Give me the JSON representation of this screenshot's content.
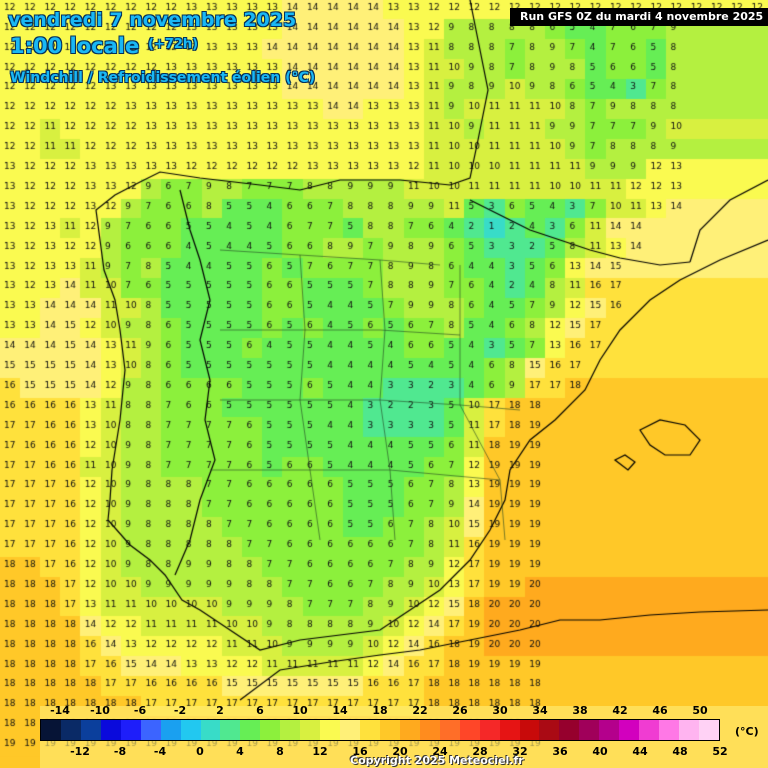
{
  "header": {
    "date": "vendredi 7 novembre 2025",
    "local_time": "1:00 locale",
    "offset": "(+72h)",
    "parameter": "Windchill / Refroidissement éolien (°C)",
    "run": "Run GFS 0Z du mardi 4 novembre 2025"
  },
  "legend": {
    "unit": "(°C)",
    "upper_ticks": [
      "-14",
      "-10",
      "-6",
      "-2",
      "2",
      "6",
      "10",
      "14",
      "18",
      "22",
      "26",
      "30",
      "34",
      "38",
      "42",
      "46",
      "50"
    ],
    "lower_ticks": [
      "-12",
      "-8",
      "-4",
      "0",
      "4",
      "8",
      "12",
      "16",
      "20",
      "24",
      "28",
      "32",
      "36",
      "40",
      "44",
      "48",
      "52"
    ],
    "colors": [
      "#061436",
      "#0a2a66",
      "#0b3f9c",
      "#0a0adc",
      "#1e1efa",
      "#3c64ff",
      "#1aa0f0",
      "#22c8f0",
      "#38dcc8",
      "#50e890",
      "#66ee55",
      "#8cf03c",
      "#b4f040",
      "#d8f040",
      "#fafa50",
      "#fff078",
      "#ffe13c",
      "#ffc828",
      "#ffaa1e",
      "#ff8c1e",
      "#ff6e28",
      "#ff4628",
      "#f52828",
      "#e61414",
      "#c80a0a",
      "#aa0a14",
      "#96002d",
      "#a0005a",
      "#b4008c",
      "#d200be",
      "#f03cd2",
      "#ff78e6",
      "#ffb4f0",
      "#ffd2f5"
    ]
  },
  "copyright": "Copyright 2025 Meteociel.fr",
  "map": {
    "temperature_grid": [
      "12 12 12 12 12 12 12 12 12 13 13 13 13 13 14 14 14 14 14 13 13 12 12 12 12 12 12 12 12 12 12 12 12 12 12 12 12 12",
      "12 12 12 12 12 12 12 12 12 13 13 13 13 13 14 14 14 14 14 14 13 12 9 8 8 8 8 6 5 4 7 6 7 9",
      "12 12 12 12 12 12 12 12 12 13 13 13 13 14 14 14 14 14 14 14 13 11 8 8 8 7 8 9 7 4 7 6 5 8",
      "12 12 12 12 12 12 12 12 13 13 13 13 13 13 14 14 14 14 14 14 13 11 10 9 8 7 8 9 8 5 6 6 5 8",
      "12 12 12 12 12 13 13 13 13 13 13 13 13 13 14 14 14 14 14 14 13 11 9 8 9 10 9 8 6 5 4 3 7 8",
      "12 12 12 12 12 12 13 13 13 13 13 13 13 13 13 13 14 14 13 13 13 11 9 10 11 11 11 10 8 7 9 8 8 8",
      "12 12 11 12 12 12 12 13 13 13 13 13 13 13 13 13 13 13 13 13 13 11 10 9 11 11 11 9 9 7 7 7 9 10",
      "12 12 11 11 12 12 12 13 13 13 13 13 13 13 13 13 13 13 13 13 13 11 10 10 11 11 11 10 9 7 8 8 8 9",
      "13 12 12 12 13 13 13 13 13 12 12 12 12 12 12 13 13 13 13 13 12 11 10 10 10 11 11 11 11 9 9 9 12 13",
      "13 12 12 12 13 13 12 9 6 7 9 8 7 7 7 8 8 9 9 9 11 10 10 11 11 11 11 10 10 11 11 12 12 13",
      "13 12 12 12 13 12 9 7 6 6 8 5 5 4 6 6 7 8 8 8 9 9 11 5 3 6 5 4 3 7 10 11 13 14",
      "13 12 13 11 12 9 7 6 6 5 5 4 5 4 6 7 7 5 8 8 7 6 4 2 1 2 4 3 6 11 14 14",
      "13 12 13 12 12 9 6 6 6 4 5 4 4 5 6 6 8 9 7 9 8 9 6 5 3 3 2 5 8 11 13 14",
      "13 12 13 13 11 9 7 8 5 4 4 5 5 6 5 7 6 7 7 8 9 8 6 4 4 3 5 6 13 14 15",
      "13 12 13 14 11 10 7 6 5 5 5 5 5 6 6 5 5 5 7 8 8 9 7 6 4 2 4 8 11 16 17",
      "13 13 14 14 14 11 10 8 5 5 5 5 5 6 6 5 4 4 5 7 9 9 8 6 4 5 7 9 12 15 16",
      "13 13 14 15 12 10 9 8 6 5 5 5 5 6 5 6 4 5 6 5 6 7 8 5 4 6 8 12 15 17",
      "14 14 14 15 14 13 11 9 6 5 5 5 6 4 5 5 4 4 5 4 6 6 5 4 3 5 7 13 16 17",
      "15 15 15 15 14 13 10 8 6 5 5 5 5 5 5 5 4 4 4 4 5 4 5 4 6 8 15 16 17",
      "16 15 15 15 14 12 9 8 6 6 6 6 5 5 5 6 5 4 4 3 3 2 3 4 6 9 17 17 18",
      "16 16 16 16 13 11 8 8 7 6 6 5 5 5 5 5 5 4 3 2 2 3 5 10 17 18 18",
      "17 17 16 16 13 10 8 8 7 7 7 7 6 5 5 5 4 4 3 3 3 3 5 11 17 18 19",
      "17 16 16 16 12 10 9 8 7 7 7 7 6 5 5 5 5 4 4 4 5 5 6 11 18 19 19",
      "17 17 16 16 11 10 9 8 7 7 7 7 6 5 6 6 5 4 4 4 5 6 7 12 19 19 19",
      "17 17 17 16 12 10 9 8 8 8 7 7 6 6 6 6 6 5 5 5 6 7 8 13 19 19 19",
      "17 17 17 16 12 10 9 8 8 8 7 7 6 6 6 6 6 5 5 5 6 7 9 14 19 19 19",
      "17 17 17 16 12 10 9 8 8 8 8 7 7 6 6 6 6 5 5 6 7 8 10 15 19 19 19",
      "17 17 17 16 12 10 9 8 8 8 8 8 7 7 6 6 6 6 6 6 7 8 11 16 19 19 19",
      "18 18 17 16 12 10 9 8 8 9 9 8 8 7 7 6 6 6 6 7 8 9 12 17 19 19 19",
      "18 18 18 17 12 10 10 9 9 9 9 9 8 8 7 7 6 6 7 8 9 10 13 17 19 19 20",
      "18 18 18 17 13 11 11 10 10 10 10 9 9 9 8 7 7 7 8 9 10 12 15 18 20 20 20",
      "18 18 18 18 14 12 12 11 11 11 11 10 10 9 8 8 8 8 9 10 12 14 17 19 20 20 20",
      "18 18 18 18 16 14 13 12 12 12 12 11 11 10 9 9 9 9 10 12 14 16 18 19 20 20 20",
      "18 18 18 18 17 16 15 14 14 13 13 12 12 11 11 11 11 11 12 14 16 17 18 19 19 19 19",
      "18 18 18 18 18 17 17 16 16 16 16 15 15 15 15 15 15 15 16 16 17 18 18 18 18 18 18",
      "18 18 18 18 18 18 18 17 17 17 17 17 17 17 17 17 17 17 17 17 17 18 18 18 18 18 18",
      "18 18 18 18 18 18 18 18 18 18 18 18 18 18 18 18 18 18 18 18 18 18 18 18 18 18 18",
      "19 19 19 19 19 19 19 19 19 19 19 19 19 19 19 19 19 19 19 19 19 19 19 19 19 19 19"
    ]
  }
}
